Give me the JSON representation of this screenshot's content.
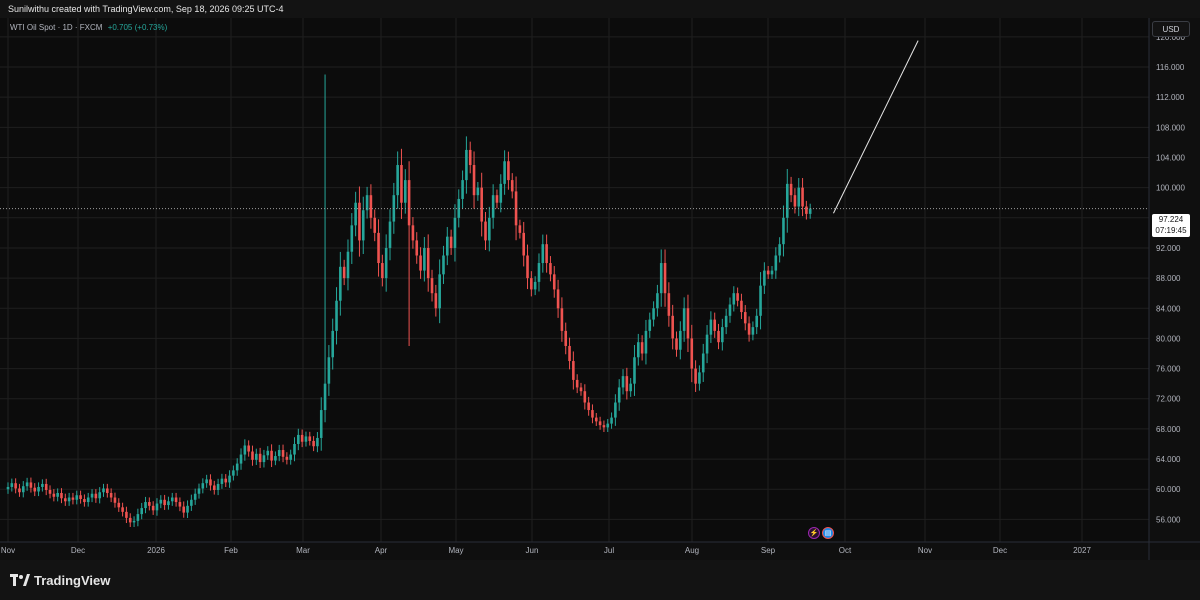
{
  "header": {
    "credit": "Sunilwithu created with TradingView.com, Sep 18, 2026 09:25 UTC-4"
  },
  "legend": {
    "symbol": "WTI Oil Spot · 1D · FXCM",
    "change": "+0.705 (+0.73%)"
  },
  "toolbar": {
    "currency": "USD"
  },
  "price_tag": {
    "price": "97.224",
    "countdown": "07:19:45"
  },
  "footer": {
    "brand": "TradingView"
  },
  "icons": {
    "flash": "lightning-icon",
    "flag": "us-flag-icon",
    "logo": "tradingview-logo-icon"
  },
  "colors": {
    "up": "#26a69a",
    "down": "#ef5350",
    "background": "#0c0c0c",
    "grid": "#1f1f1f"
  },
  "chart_data": {
    "type": "candlestick",
    "title": "",
    "ylabel": "",
    "xlabel": "",
    "ylim": [
      53.0,
      122.5
    ],
    "yticks": [
      "56.000",
      "60.000",
      "64.000",
      "68.000",
      "72.000",
      "76.000",
      "80.000",
      "84.000",
      "88.000",
      "92.000",
      "96.000",
      "100.000",
      "104.000",
      "108.000",
      "112.000",
      "116.000",
      "120.000"
    ],
    "xticks": [
      "Nov",
      "Dec",
      "2026",
      "Feb",
      "Mar",
      "Apr",
      "May",
      "Jun",
      "Jul",
      "Aug",
      "Sep",
      "Oct",
      "Nov",
      "Dec",
      "2027"
    ],
    "last_price": 97.224,
    "series_close": [
      60.3,
      60.8,
      60.1,
      59.6,
      60.4,
      60.9,
      60.2,
      59.7,
      60.3,
      60.7,
      59.9,
      59.4,
      59.0,
      59.5,
      58.8,
      58.4,
      58.9,
      58.6,
      59.2,
      58.7,
      58.3,
      58.9,
      59.4,
      58.8,
      59.6,
      60.1,
      59.5,
      58.9,
      58.2,
      57.6,
      57.0,
      56.2,
      55.6,
      55.8,
      56.7,
      57.5,
      58.3,
      57.8,
      57.2,
      58.1,
      58.6,
      57.9,
      58.4,
      58.9,
      58.3,
      57.7,
      56.9,
      57.8,
      58.6,
      59.4,
      60.1,
      60.8,
      61.3,
      60.5,
      59.9,
      60.7,
      61.4,
      60.9,
      61.8,
      62.5,
      63.4,
      64.6,
      65.8,
      65.0,
      63.9,
      64.7,
      63.6,
      64.5,
      65.1,
      63.8,
      64.4,
      65.2,
      64.3,
      63.9,
      64.6,
      66.0,
      67.2,
      66.3,
      67.0,
      66.4,
      65.7,
      66.8,
      70.5,
      74.0,
      77.5,
      81.0,
      85.0,
      89.5,
      88.0,
      91.5,
      95.0,
      98.0,
      93.0,
      97.0,
      99.0,
      96.0,
      94.0,
      90.0,
      88.0,
      92.0,
      95.5,
      99.0,
      103.0,
      98.0,
      101.0,
      95.0,
      93.0,
      91.0,
      89.0,
      92.0,
      88.0,
      86.0,
      84.0,
      88.5,
      91.0,
      93.5,
      92.0,
      96.0,
      98.5,
      101.0,
      105.0,
      103.0,
      99.0,
      100.0,
      95.5,
      93.0,
      96.0,
      99.0,
      98.0,
      100.5,
      103.5,
      101.0,
      99.5,
      95.0,
      94.0,
      91.0,
      88.0,
      86.5,
      87.5,
      90.0,
      92.5,
      90.0,
      88.5,
      86.5,
      84.0,
      81.0,
      79.0,
      77.0,
      74.5,
      73.5,
      73.0,
      71.5,
      70.5,
      69.5,
      69.0,
      68.5,
      68.2,
      68.7,
      69.5,
      71.5,
      73.5,
      75.0,
      73.0,
      74.0,
      77.5,
      79.5,
      78.0,
      81.0,
      82.5,
      84.0,
      86.0,
      90.0,
      86.0,
      83.0,
      80.0,
      78.5,
      81.0,
      84.0,
      80.0,
      76.0,
      74.0,
      75.5,
      78.0,
      80.5,
      82.5,
      81.0,
      79.5,
      81.5,
      83.0,
      84.5,
      86.0,
      85.0,
      83.5,
      82.0,
      80.5,
      81.5,
      83.0,
      87.0,
      89.0,
      88.5,
      89.0,
      91.0,
      92.5,
      96.0,
      100.5,
      99.0,
      97.5,
      100.0,
      97.5,
      96.519,
      97.224
    ],
    "annotations": [
      {
        "type": "trend_line",
        "from": {
          "bar": 203,
          "price": 96.6
        },
        "to": {
          "bar": 216,
          "price": 119.5
        }
      }
    ]
  }
}
